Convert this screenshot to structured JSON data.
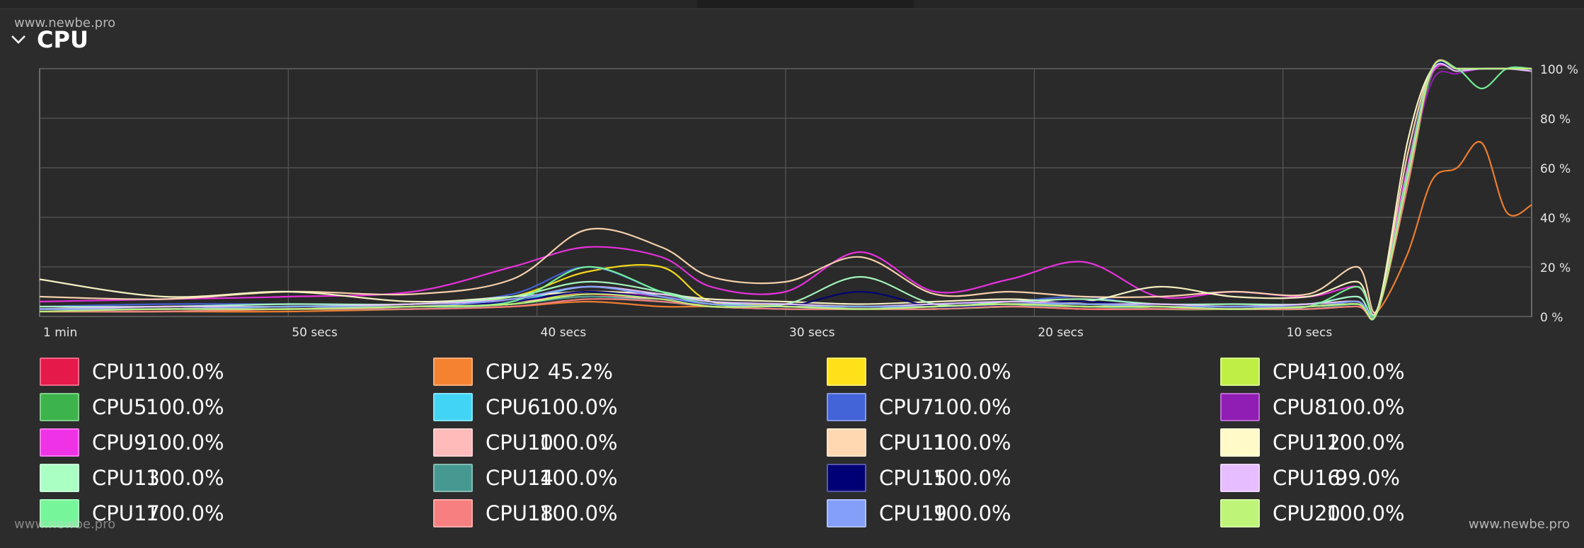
{
  "watermark": "www.newbe.pro",
  "section": {
    "title": "CPU",
    "expanded": true,
    "toggle_icon": "chevron-down-icon"
  },
  "colors": {
    "background": "#2c2c2c",
    "grid": "#5a5a5a",
    "text": "#ffffff"
  },
  "chart_data": {
    "type": "line",
    "x_ticks": [
      "1 min",
      "50 secs",
      "40 secs",
      "30 secs",
      "20 secs",
      "10 secs"
    ],
    "y_ticks": [
      "100 %",
      "80 %",
      "60 %",
      "40 %",
      "20 %",
      "0 %"
    ],
    "xlim": [
      60,
      0
    ],
    "ylim": [
      0,
      100
    ],
    "grid": true,
    "x_knots": [
      60,
      55,
      50,
      45,
      41,
      38,
      35,
      33,
      30,
      27,
      24,
      21,
      18,
      15,
      12,
      9,
      7,
      6.2,
      5,
      4,
      3,
      2,
      1,
      0
    ],
    "series": [
      {
        "name": "CPU1",
        "color": "#e6194b",
        "value": "100.0%",
        "values": [
          3,
          2,
          3,
          4,
          6,
          9,
          6,
          5,
          4,
          3,
          4,
          5,
          3,
          4,
          3,
          4,
          5,
          2,
          55,
          100,
          100,
          100,
          100,
          100
        ]
      },
      {
        "name": "CPU2",
        "color": "#f58231",
        "value": "45.2%",
        "values": [
          2,
          2,
          2,
          3,
          4,
          6,
          4,
          4,
          3,
          3,
          3,
          4,
          3,
          3,
          3,
          3,
          4,
          2,
          25,
          55,
          60,
          70,
          42,
          45
        ]
      },
      {
        "name": "CPU3",
        "color": "#ffe119",
        "value": "100.0%",
        "values": [
          3,
          4,
          4,
          5,
          8,
          18,
          20,
          6,
          5,
          4,
          4,
          5,
          5,
          4,
          4,
          5,
          6,
          2,
          60,
          100,
          100,
          100,
          100,
          100
        ]
      },
      {
        "name": "CPU4",
        "color": "#bfef45",
        "value": "100.0%",
        "values": [
          2,
          3,
          3,
          4,
          5,
          10,
          8,
          4,
          4,
          3,
          3,
          4,
          5,
          3,
          3,
          4,
          6,
          2,
          55,
          99,
          100,
          100,
          100,
          100
        ]
      },
      {
        "name": "CPU5",
        "color": "#3cb44b",
        "value": "100.0%",
        "values": [
          2,
          2,
          3,
          3,
          5,
          8,
          6,
          4,
          3,
          3,
          3,
          4,
          4,
          3,
          3,
          3,
          5,
          2,
          52,
          98,
          100,
          100,
          100,
          100
        ]
      },
      {
        "name": "CPU6",
        "color": "#42d4f4",
        "value": "100.0%",
        "values": [
          3,
          3,
          3,
          4,
          6,
          12,
          8,
          5,
          4,
          3,
          4,
          5,
          4,
          4,
          3,
          4,
          5,
          2,
          58,
          99,
          100,
          100,
          100,
          100
        ]
      },
      {
        "name": "CPU7",
        "color": "#4363d8",
        "value": "100.0%",
        "values": [
          4,
          5,
          5,
          5,
          9,
          20,
          10,
          6,
          5,
          4,
          5,
          6,
          8,
          4,
          4,
          5,
          8,
          2,
          60,
          100,
          100,
          100,
          100,
          100
        ]
      },
      {
        "name": "CPU8",
        "color": "#911eb4",
        "value": "100.0%",
        "values": [
          3,
          3,
          4,
          4,
          6,
          10,
          8,
          5,
          4,
          4,
          4,
          5,
          5,
          4,
          4,
          4,
          6,
          2,
          56,
          95,
          98,
          100,
          100,
          100
        ]
      },
      {
        "name": "CPU9",
        "color": "#f032e6",
        "value": "100.0%",
        "values": [
          6,
          7,
          8,
          10,
          20,
          28,
          24,
          12,
          10,
          26,
          10,
          15,
          22,
          8,
          10,
          8,
          12,
          3,
          60,
          98,
          100,
          100,
          100,
          100
        ]
      },
      {
        "name": "CPU10",
        "color": "#ffbaba",
        "value": "100.0%",
        "values": [
          3,
          3,
          4,
          4,
          6,
          8,
          7,
          5,
          4,
          4,
          4,
          5,
          4,
          4,
          3,
          4,
          5,
          2,
          55,
          100,
          100,
          100,
          100,
          100
        ]
      },
      {
        "name": "CPU11",
        "color": "#ffd8b1",
        "value": "100.0%",
        "values": [
          8,
          7,
          10,
          9,
          15,
          35,
          28,
          16,
          14,
          24,
          9,
          10,
          8,
          8,
          10,
          9,
          20,
          3,
          65,
          100,
          100,
          100,
          100,
          100
        ]
      },
      {
        "name": "CPU12",
        "color": "#fffac8",
        "value": "100.0%",
        "values": [
          15,
          8,
          10,
          6,
          8,
          10,
          9,
          7,
          6,
          5,
          6,
          7,
          6,
          12,
          8,
          8,
          14,
          3,
          70,
          100,
          100,
          100,
          100,
          100
        ]
      },
      {
        "name": "CPU13",
        "color": "#aaffc3",
        "value": "100.0%",
        "values": [
          4,
          4,
          5,
          5,
          8,
          14,
          10,
          6,
          5,
          16,
          5,
          6,
          7,
          5,
          5,
          5,
          8,
          2,
          58,
          100,
          100,
          100,
          100,
          100
        ]
      },
      {
        "name": "CPU14",
        "color": "#469990",
        "value": "100.0%",
        "values": [
          2,
          3,
          3,
          3,
          5,
          8,
          6,
          4,
          3,
          3,
          3,
          4,
          4,
          3,
          3,
          3,
          5,
          2,
          54,
          99,
          100,
          100,
          100,
          100
        ]
      },
      {
        "name": "CPU15",
        "color": "#000075",
        "value": "100.0%",
        "values": [
          2,
          3,
          4,
          4,
          6,
          10,
          7,
          5,
          4,
          10,
          4,
          5,
          6,
          4,
          4,
          4,
          6,
          2,
          55,
          99,
          100,
          100,
          100,
          100
        ]
      },
      {
        "name": "CPU16",
        "color": "#e6beff",
        "value": "99.0%",
        "values": [
          3,
          4,
          4,
          5,
          7,
          12,
          9,
          6,
          5,
          4,
          5,
          6,
          5,
          5,
          4,
          5,
          6,
          2,
          57,
          99,
          99,
          100,
          100,
          99
        ]
      },
      {
        "name": "CPU17",
        "color": "#77f59a",
        "value": "100.0%",
        "values": [
          3,
          3,
          4,
          4,
          6,
          20,
          10,
          5,
          4,
          4,
          4,
          5,
          5,
          4,
          3,
          4,
          12,
          2,
          58,
          100,
          100,
          92,
          100,
          100
        ]
      },
      {
        "name": "CPU18",
        "color": "#f77f7f",
        "value": "100.0%",
        "values": [
          2,
          2,
          3,
          3,
          4,
          7,
          6,
          4,
          3,
          3,
          3,
          4,
          3,
          3,
          3,
          3,
          4,
          2,
          52,
          100,
          100,
          100,
          100,
          100
        ]
      },
      {
        "name": "CPU19",
        "color": "#849ff8",
        "value": "100.0%",
        "values": [
          3,
          3,
          4,
          4,
          7,
          12,
          8,
          5,
          4,
          4,
          4,
          5,
          5,
          4,
          4,
          4,
          6,
          2,
          56,
          100,
          100,
          100,
          100,
          100
        ]
      },
      {
        "name": "CPU20",
        "color": "#bef477",
        "value": "100.0%",
        "values": [
          2,
          3,
          3,
          4,
          5,
          9,
          7,
          4,
          4,
          3,
          4,
          5,
          4,
          4,
          3,
          4,
          5,
          2,
          55,
          100,
          100,
          100,
          100,
          100
        ]
      }
    ]
  }
}
